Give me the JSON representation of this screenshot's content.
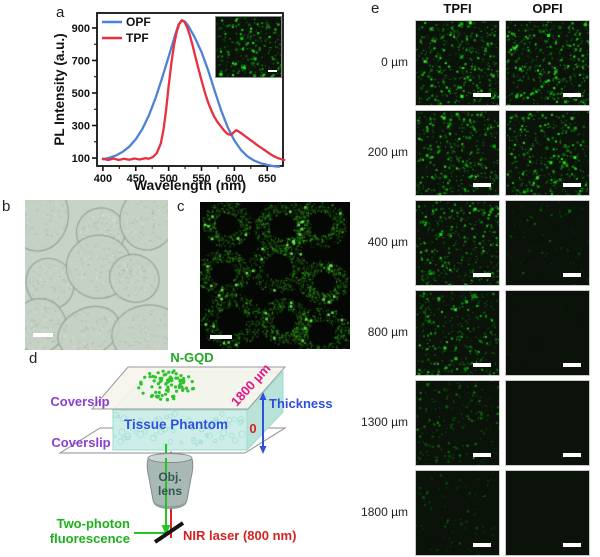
{
  "panels": {
    "a": {
      "label": "a",
      "inset": {
        "density": 1.0,
        "brightness": 1.0,
        "scale_bar": true
      }
    },
    "b": {
      "label": "b",
      "description": "bright-field micrograph of cells",
      "scale_bar": true
    },
    "c": {
      "label": "c",
      "description": "two-photon fluorescence micrograph of N-GQD labeled cells",
      "scale_bar": true
    },
    "d": {
      "label": "d",
      "labels": {
        "ngqd": "N-GQD",
        "coverslip_top": "Coverslip",
        "coverslip_bottom": "Coverslip",
        "tissue_phantom": "Tissue Phantom",
        "depth_max": "1800 µm",
        "depth_min": "0",
        "thickness": "Thickness",
        "objective_line1": "Obj.",
        "objective_line2": "lens",
        "two_photon_line1": "Two-photon",
        "two_photon_line2": "fluorescence",
        "nir": "NIR laser (800 nm)"
      },
      "colors": {
        "ngqd": "#1fa822",
        "coverslip": "#8a3fd0",
        "tissue_phantom": "#2f50dd",
        "depth_max": "#e0188c",
        "depth_min": "#d42222",
        "thickness": "#2f50dd",
        "objective_text": "#2f5a52",
        "two_photon": "#1db21d",
        "nir": "#d42222"
      }
    },
    "e": {
      "label": "e",
      "columns": [
        "TPFI",
        "OPFI"
      ],
      "rows": [
        {
          "depth": "0 µm",
          "tpfi_density": 1.0,
          "tpfi_brightness": 1.0,
          "opfi_density": 1.0,
          "opfi_brightness": 1.0
        },
        {
          "depth": "200 µm",
          "tpfi_density": 0.9,
          "tpfi_brightness": 0.95,
          "opfi_density": 0.85,
          "opfi_brightness": 0.95
        },
        {
          "depth": "400 µm",
          "tpfi_density": 0.8,
          "tpfi_brightness": 0.9,
          "opfi_density": 0.2,
          "opfi_brightness": 0.45
        },
        {
          "depth": "800 µm",
          "tpfi_density": 0.75,
          "tpfi_brightness": 0.85,
          "opfi_density": 0.02,
          "opfi_brightness": 0.15
        },
        {
          "depth": "1300 µm",
          "tpfi_density": 0.5,
          "tpfi_brightness": 0.6,
          "opfi_density": 0.0,
          "opfi_brightness": 0.0
        },
        {
          "depth": "1800 µm",
          "tpfi_density": 0.25,
          "tpfi_brightness": 0.45,
          "opfi_density": 0.0,
          "opfi_brightness": 0.0
        }
      ],
      "scale_bar": true
    }
  },
  "chart_data": {
    "type": "line",
    "title": "",
    "xlabel": "Wavelength (nm)",
    "ylabel": "PL Intensity (a.u.)",
    "xlim": [
      391,
      674
    ],
    "ylim": [
      51,
      992
    ],
    "xticks": [
      400,
      450,
      500,
      550,
      600,
      650
    ],
    "xminorticks": [
      425,
      475,
      525,
      575,
      625
    ],
    "yticks": [
      100,
      300,
      500,
      700,
      900
    ],
    "yminorticks": [
      200,
      400,
      600,
      800
    ],
    "legend_position": "top-left",
    "legend": [
      "OPF",
      "TPF"
    ],
    "series": [
      {
        "name": "OPF",
        "color": "#4f81d8",
        "points": [
          [
            400,
            93
          ],
          [
            410,
            102
          ],
          [
            420,
            116
          ],
          [
            430,
            138
          ],
          [
            440,
            170
          ],
          [
            450,
            215
          ],
          [
            460,
            278
          ],
          [
            470,
            362
          ],
          [
            480,
            468
          ],
          [
            490,
            592
          ],
          [
            500,
            722
          ],
          [
            505,
            790
          ],
          [
            510,
            858
          ],
          [
            515,
            920
          ],
          [
            520,
            947
          ],
          [
            525,
            938
          ],
          [
            530,
            912
          ],
          [
            540,
            840
          ],
          [
            550,
            752
          ],
          [
            560,
            640
          ],
          [
            570,
            515
          ],
          [
            580,
            392
          ],
          [
            590,
            288
          ],
          [
            600,
            208
          ],
          [
            610,
            150
          ],
          [
            620,
            110
          ],
          [
            630,
            84
          ],
          [
            640,
            68
          ],
          [
            650,
            58
          ],
          [
            660,
            50
          ],
          [
            668,
            47
          ]
        ]
      },
      {
        "name": "TPF",
        "color": "#e8303f",
        "points": [
          [
            400,
            96
          ],
          [
            408,
            88
          ],
          [
            416,
            97
          ],
          [
            424,
            88
          ],
          [
            432,
            96
          ],
          [
            440,
            89
          ],
          [
            448,
            97
          ],
          [
            456,
            91
          ],
          [
            464,
            99
          ],
          [
            470,
            96
          ],
          [
            476,
            106
          ],
          [
            482,
            130
          ],
          [
            488,
            190
          ],
          [
            492,
            270
          ],
          [
            496,
            390
          ],
          [
            500,
            540
          ],
          [
            504,
            680
          ],
          [
            508,
            790
          ],
          [
            512,
            872
          ],
          [
            516,
            925
          ],
          [
            520,
            947
          ],
          [
            524,
            938
          ],
          [
            528,
            905
          ],
          [
            532,
            858
          ],
          [
            536,
            800
          ],
          [
            540,
            735
          ],
          [
            545,
            655
          ],
          [
            550,
            578
          ],
          [
            555,
            505
          ],
          [
            560,
            442
          ],
          [
            565,
            392
          ],
          [
            570,
            350
          ],
          [
            575,
            318
          ],
          [
            580,
            292
          ],
          [
            585,
            266
          ],
          [
            590,
            247
          ],
          [
            595,
            242
          ],
          [
            600,
            262
          ],
          [
            603,
            272
          ],
          [
            606,
            265
          ],
          [
            612,
            248
          ],
          [
            618,
            230
          ],
          [
            624,
            212
          ],
          [
            630,
            194
          ],
          [
            636,
            176
          ],
          [
            642,
            160
          ],
          [
            648,
            143
          ],
          [
            654,
            126
          ],
          [
            660,
            111
          ],
          [
            666,
            100
          ],
          [
            672,
            92
          ],
          [
            676,
            88
          ]
        ]
      }
    ]
  }
}
